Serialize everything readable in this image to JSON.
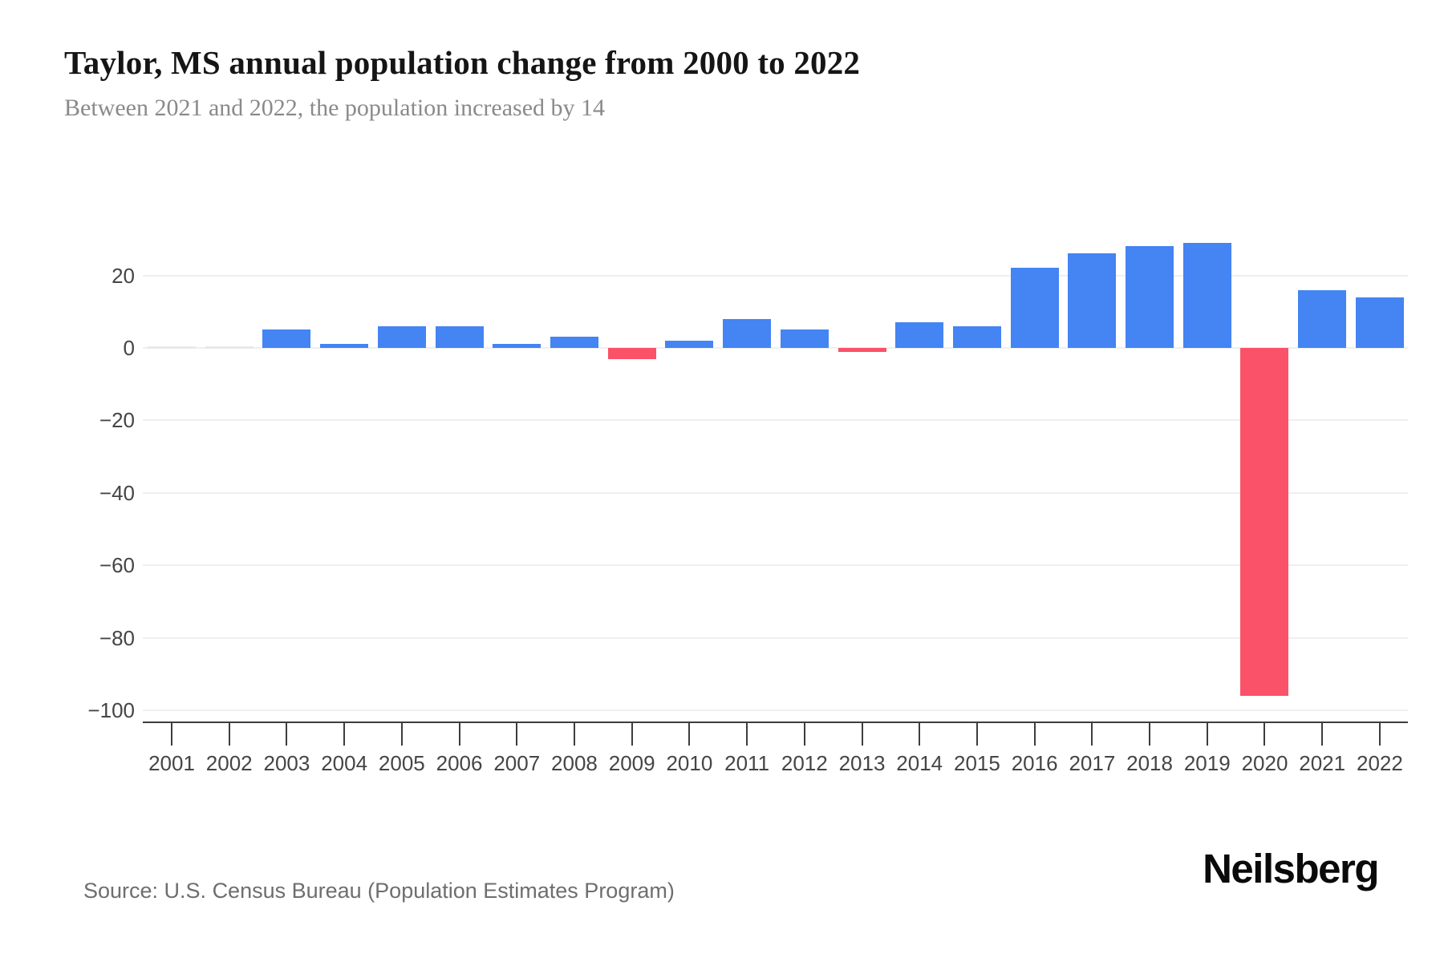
{
  "header": {
    "title": "Taylor, MS annual population change from 2000 to 2022",
    "subtitle": "Between 2021 and 2022, the population increased by 14"
  },
  "footer": {
    "source": "Source: U.S. Census Bureau (Population Estimates Program)",
    "brand": "Neilsberg"
  },
  "colors": {
    "positive_bar": "#4484F3",
    "negative_bar": "#FA5268",
    "zero_bar": "#e9e9e9",
    "gridline": "#efefef",
    "axis": "#3d3d3d",
    "axis_text": "#454545"
  },
  "chart_data": {
    "type": "bar",
    "title": "Taylor, MS annual population change from 2000 to 2022",
    "subtitle": "Between 2021 and 2022, the population increased by 14",
    "xlabel": "",
    "ylabel": "",
    "categories": [
      "2001",
      "2002",
      "2003",
      "2004",
      "2005",
      "2006",
      "2007",
      "2008",
      "2009",
      "2010",
      "2011",
      "2012",
      "2013",
      "2014",
      "2015",
      "2016",
      "2017",
      "2018",
      "2019",
      "2020",
      "2021",
      "2022"
    ],
    "values": [
      0,
      0,
      5,
      1,
      6,
      6,
      1,
      3,
      -3,
      2,
      8,
      5,
      -1,
      7,
      6,
      22,
      26,
      28,
      29,
      -96,
      16,
      14
    ],
    "y_ticks": [
      {
        "v": 20,
        "label": "20"
      },
      {
        "v": 0,
        "label": "0"
      },
      {
        "v": -20,
        "label": "−20"
      },
      {
        "v": -40,
        "label": "−40"
      },
      {
        "v": -60,
        "label": "−60"
      },
      {
        "v": -80,
        "label": "−80"
      },
      {
        "v": -100,
        "label": "−100"
      }
    ],
    "ylim": [
      -105,
      31
    ],
    "grid": "horizontal",
    "legend": "none"
  }
}
